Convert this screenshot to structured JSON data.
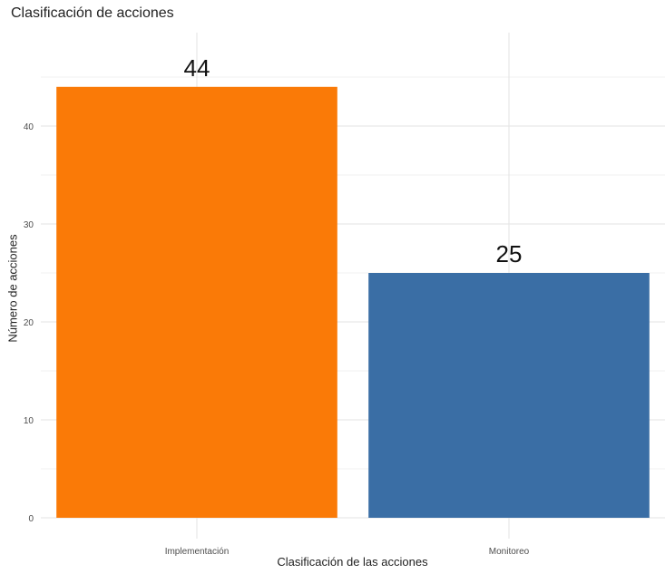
{
  "chart_data": {
    "type": "bar",
    "title": "Clasificación de acciones",
    "xlabel": "Clasificación de las acciones",
    "ylabel": "Número de acciones",
    "categories": [
      "Implementación",
      "Monitoreo"
    ],
    "values": [
      44,
      25
    ],
    "data_labels": [
      "44",
      "25"
    ],
    "colors": [
      "#FA7A07",
      "#3A6EA5"
    ],
    "ylim": [
      0,
      46
    ],
    "yticks": [
      0,
      10,
      20,
      30,
      40
    ],
    "grid": true,
    "legend": "none"
  }
}
